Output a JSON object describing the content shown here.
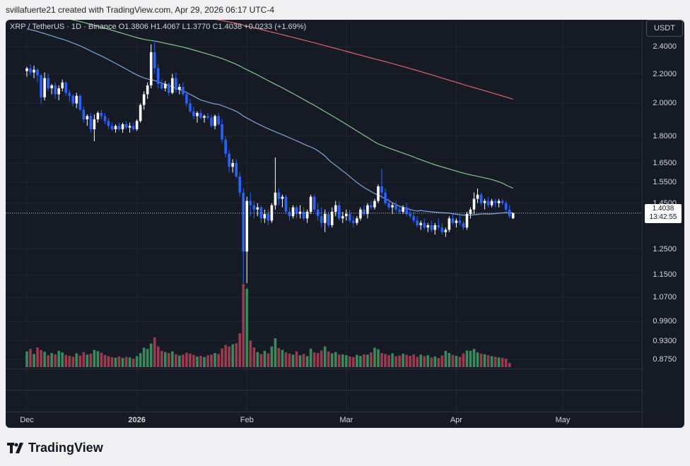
{
  "header": {
    "text": "svillafuerte21 created with TradingView.com, Apr 29, 2026 06:17 UTC-4"
  },
  "legend": {
    "symbol": "XRP / TetherUS · 1D · Binance",
    "o_label": "O",
    "open": "1.3806",
    "h_label": "H",
    "high": "1.4067",
    "l_label": "L",
    "low": "1.3770",
    "c_label": "C",
    "close": "1.4038",
    "change": "+0.0233 (+1.69%)"
  },
  "currency": "USDT",
  "last_price": {
    "value": "1.4038",
    "countdown": "13:42:55"
  },
  "logo": {
    "text": "TradingView"
  },
  "chart_data": {
    "type": "candlestick",
    "scale": "log",
    "ylim": [
      0.85,
      2.62
    ],
    "y_ticks": [
      "2.4000",
      "2.2000",
      "2.0000",
      "1.8000",
      "1.6500",
      "1.5500",
      "1.4500",
      "1.2500",
      "1.1500",
      "1.0700",
      "0.9900",
      "0.9300",
      "0.8750"
    ],
    "x_ticks": [
      {
        "label": "Dec",
        "day": 0
      },
      {
        "label": "2026",
        "day": 31,
        "bold": true
      },
      {
        "label": "Feb",
        "day": 62
      },
      {
        "label": "Mar",
        "day": 90
      },
      {
        "label": "Apr",
        "day": 121
      },
      {
        "label": "May",
        "day": 151
      }
    ],
    "colors": {
      "up": "#ffffff",
      "down": "#2962ff",
      "vol_up": "#3c8a5c",
      "vol_down": "#9c3b4f",
      "ma50": "#7aa7d8",
      "ma100": "#86c48e",
      "ma200": "#d9646f"
    },
    "candles": [
      [
        2.22,
        2.25,
        2.18,
        2.24
      ],
      [
        2.24,
        2.27,
        2.19,
        2.21
      ],
      [
        2.21,
        2.26,
        2.17,
        2.23
      ],
      [
        2.23,
        2.24,
        2.14,
        2.19
      ],
      [
        2.19,
        2.2,
        2.0,
        2.04
      ],
      [
        2.04,
        2.21,
        2.02,
        2.17
      ],
      [
        2.17,
        2.2,
        2.08,
        2.1
      ],
      [
        2.1,
        2.13,
        2.06,
        2.12
      ],
      [
        2.12,
        2.14,
        2.03,
        2.06
      ],
      [
        2.06,
        2.12,
        2.02,
        2.1
      ],
      [
        2.1,
        2.16,
        2.08,
        2.14
      ],
      [
        2.14,
        2.15,
        2.05,
        2.07
      ],
      [
        2.07,
        2.09,
        2.01,
        2.05
      ],
      [
        2.05,
        2.06,
        1.98,
        2.0
      ],
      [
        2.0,
        2.07,
        1.97,
        2.05
      ],
      [
        2.05,
        2.06,
        1.95,
        1.96
      ],
      [
        1.96,
        1.98,
        1.88,
        1.9
      ],
      [
        1.9,
        1.93,
        1.86,
        1.92
      ],
      [
        1.92,
        1.94,
        1.82,
        1.84
      ],
      [
        1.84,
        1.93,
        1.77,
        1.9
      ],
      [
        1.9,
        1.95,
        1.88,
        1.94
      ],
      [
        1.94,
        1.96,
        1.9,
        1.92
      ],
      [
        1.92,
        1.94,
        1.87,
        1.89
      ],
      [
        1.89,
        1.91,
        1.84,
        1.86
      ],
      [
        1.86,
        1.88,
        1.83,
        1.84
      ],
      [
        1.84,
        1.87,
        1.82,
        1.86
      ],
      [
        1.86,
        1.88,
        1.83,
        1.84
      ],
      [
        1.84,
        1.88,
        1.82,
        1.87
      ],
      [
        1.87,
        1.89,
        1.84,
        1.85
      ],
      [
        1.85,
        1.88,
        1.82,
        1.86
      ],
      [
        1.86,
        1.88,
        1.83,
        1.84
      ],
      [
        1.84,
        1.9,
        1.83,
        1.89
      ],
      [
        1.89,
        2.0,
        1.88,
        1.99
      ],
      [
        1.99,
        2.08,
        1.96,
        2.06
      ],
      [
        2.06,
        2.14,
        2.03,
        2.12
      ],
      [
        2.12,
        2.42,
        2.1,
        2.36
      ],
      [
        2.36,
        2.45,
        2.2,
        2.24
      ],
      [
        2.24,
        2.27,
        2.1,
        2.13
      ],
      [
        2.13,
        2.16,
        2.09,
        2.1
      ],
      [
        2.1,
        2.15,
        2.08,
        2.13
      ],
      [
        2.13,
        2.14,
        2.05,
        2.07
      ],
      [
        2.07,
        2.2,
        2.06,
        2.17
      ],
      [
        2.17,
        2.21,
        2.07,
        2.09
      ],
      [
        2.09,
        2.13,
        2.06,
        2.11
      ],
      [
        2.11,
        2.14,
        2.05,
        2.06
      ],
      [
        2.06,
        2.08,
        1.98,
        2.0
      ],
      [
        2.0,
        2.03,
        1.94,
        1.95
      ],
      [
        1.95,
        1.98,
        1.9,
        1.92
      ],
      [
        1.92,
        1.95,
        1.88,
        1.94
      ],
      [
        1.94,
        1.96,
        1.9,
        1.91
      ],
      [
        1.91,
        1.93,
        1.88,
        1.92
      ],
      [
        1.92,
        1.94,
        1.9,
        1.91
      ],
      [
        1.91,
        1.93,
        1.85,
        1.86
      ],
      [
        1.86,
        1.93,
        1.84,
        1.92
      ],
      [
        1.92,
        1.94,
        1.86,
        1.87
      ],
      [
        1.87,
        1.9,
        1.76,
        1.78
      ],
      [
        1.78,
        1.8,
        1.68,
        1.7
      ],
      [
        1.7,
        1.72,
        1.6,
        1.63
      ],
      [
        1.63,
        1.67,
        1.6,
        1.65
      ],
      [
        1.65,
        1.67,
        1.57,
        1.58
      ],
      [
        1.58,
        1.6,
        1.48,
        1.5
      ],
      [
        1.5,
        1.52,
        1.12,
        1.24
      ],
      [
        1.24,
        1.48,
        1.12,
        1.46
      ],
      [
        1.46,
        1.5,
        1.39,
        1.44
      ],
      [
        1.44,
        1.46,
        1.38,
        1.42
      ],
      [
        1.42,
        1.45,
        1.39,
        1.43
      ],
      [
        1.43,
        1.44,
        1.36,
        1.38
      ],
      [
        1.38,
        1.42,
        1.36,
        1.4
      ],
      [
        1.4,
        1.42,
        1.35,
        1.37
      ],
      [
        1.37,
        1.45,
        1.36,
        1.44
      ],
      [
        1.44,
        1.68,
        1.42,
        1.5
      ],
      [
        1.5,
        1.52,
        1.44,
        1.47
      ],
      [
        1.47,
        1.49,
        1.43,
        1.48
      ],
      [
        1.48,
        1.49,
        1.4,
        1.41
      ],
      [
        1.41,
        1.43,
        1.37,
        1.39
      ],
      [
        1.39,
        1.44,
        1.38,
        1.43
      ],
      [
        1.43,
        1.44,
        1.38,
        1.4
      ],
      [
        1.4,
        1.44,
        1.38,
        1.41
      ],
      [
        1.41,
        1.43,
        1.37,
        1.38
      ],
      [
        1.38,
        1.42,
        1.36,
        1.41
      ],
      [
        1.41,
        1.49,
        1.4,
        1.48
      ],
      [
        1.48,
        1.49,
        1.41,
        1.42
      ],
      [
        1.42,
        1.45,
        1.37,
        1.39
      ],
      [
        1.39,
        1.43,
        1.34,
        1.36
      ],
      [
        1.36,
        1.42,
        1.32,
        1.4
      ],
      [
        1.4,
        1.41,
        1.34,
        1.35
      ],
      [
        1.35,
        1.43,
        1.34,
        1.41
      ],
      [
        1.41,
        1.46,
        1.39,
        1.44
      ],
      [
        1.44,
        1.46,
        1.37,
        1.38
      ],
      [
        1.38,
        1.41,
        1.36,
        1.39
      ],
      [
        1.39,
        1.42,
        1.37,
        1.4
      ],
      [
        1.4,
        1.42,
        1.36,
        1.37
      ],
      [
        1.37,
        1.39,
        1.34,
        1.36
      ],
      [
        1.36,
        1.39,
        1.35,
        1.38
      ],
      [
        1.38,
        1.43,
        1.37,
        1.42
      ],
      [
        1.42,
        1.44,
        1.39,
        1.4
      ],
      [
        1.4,
        1.45,
        1.38,
        1.44
      ],
      [
        1.44,
        1.46,
        1.42,
        1.43
      ],
      [
        1.43,
        1.47,
        1.42,
        1.46
      ],
      [
        1.46,
        1.54,
        1.45,
        1.53
      ],
      [
        1.53,
        1.62,
        1.47,
        1.5
      ],
      [
        1.5,
        1.52,
        1.44,
        1.45
      ],
      [
        1.45,
        1.47,
        1.42,
        1.43
      ],
      [
        1.43,
        1.45,
        1.4,
        1.44
      ],
      [
        1.44,
        1.46,
        1.41,
        1.42
      ],
      [
        1.42,
        1.44,
        1.4,
        1.41
      ],
      [
        1.41,
        1.44,
        1.4,
        1.43
      ],
      [
        1.43,
        1.45,
        1.39,
        1.4
      ],
      [
        1.4,
        1.42,
        1.38,
        1.39
      ],
      [
        1.39,
        1.41,
        1.36,
        1.37
      ],
      [
        1.37,
        1.39,
        1.34,
        1.35
      ],
      [
        1.35,
        1.37,
        1.33,
        1.36
      ],
      [
        1.36,
        1.38,
        1.33,
        1.34
      ],
      [
        1.34,
        1.36,
        1.32,
        1.35
      ],
      [
        1.35,
        1.37,
        1.32,
        1.33
      ],
      [
        1.33,
        1.36,
        1.31,
        1.35
      ],
      [
        1.35,
        1.38,
        1.33,
        1.34
      ],
      [
        1.34,
        1.36,
        1.31,
        1.32
      ],
      [
        1.32,
        1.34,
        1.3,
        1.33
      ],
      [
        1.33,
        1.39,
        1.32,
        1.38
      ],
      [
        1.38,
        1.4,
        1.35,
        1.36
      ],
      [
        1.36,
        1.38,
        1.34,
        1.37
      ],
      [
        1.37,
        1.39,
        1.35,
        1.36
      ],
      [
        1.36,
        1.37,
        1.33,
        1.34
      ],
      [
        1.34,
        1.41,
        1.33,
        1.4
      ],
      [
        1.4,
        1.43,
        1.38,
        1.42
      ],
      [
        1.42,
        1.5,
        1.4,
        1.47
      ],
      [
        1.47,
        1.52,
        1.45,
        1.49
      ],
      [
        1.49,
        1.5,
        1.44,
        1.45
      ],
      [
        1.45,
        1.47,
        1.42,
        1.46
      ],
      [
        1.46,
        1.48,
        1.43,
        1.44
      ],
      [
        1.44,
        1.47,
        1.43,
        1.46
      ],
      [
        1.46,
        1.47,
        1.43,
        1.45
      ],
      [
        1.45,
        1.47,
        1.43,
        1.46
      ],
      [
        1.46,
        1.47,
        1.44,
        1.45
      ],
      [
        1.45,
        1.46,
        1.41,
        1.42
      ],
      [
        1.42,
        1.44,
        1.38,
        1.39
      ],
      [
        1.3806,
        1.4067,
        1.377,
        1.4038
      ]
    ],
    "volume": [
      0.5,
      0.58,
      0.42,
      0.63,
      0.55,
      0.49,
      0.38,
      0.45,
      0.41,
      0.52,
      0.47,
      0.39,
      0.36,
      0.33,
      0.44,
      0.37,
      0.48,
      0.4,
      0.43,
      0.55,
      0.51,
      0.46,
      0.39,
      0.35,
      0.32,
      0.3,
      0.34,
      0.29,
      0.33,
      0.31,
      0.27,
      0.35,
      0.45,
      0.62,
      0.58,
      0.75,
      0.95,
      0.66,
      0.52,
      0.48,
      0.45,
      0.5,
      0.41,
      0.37,
      0.4,
      0.46,
      0.43,
      0.39,
      0.34,
      0.36,
      0.32,
      0.38,
      0.4,
      0.45,
      0.42,
      0.6,
      0.71,
      0.66,
      0.73,
      0.76,
      1.08,
      2.65,
      2.5,
      0.85,
      0.63,
      0.48,
      0.42,
      0.52,
      0.44,
      0.66,
      0.92,
      0.61,
      0.55,
      0.47,
      0.43,
      0.4,
      0.5,
      0.38,
      0.42,
      0.35,
      0.59,
      0.47,
      0.45,
      0.53,
      0.66,
      0.5,
      0.44,
      0.48,
      0.4,
      0.41,
      0.38,
      0.34,
      0.32,
      0.39,
      0.36,
      0.41,
      0.4,
      0.47,
      0.62,
      0.57,
      0.45,
      0.42,
      0.38,
      0.44,
      0.35,
      0.37,
      0.43,
      0.39,
      0.36,
      0.41,
      0.33,
      0.4,
      0.35,
      0.38,
      0.31,
      0.34,
      0.29,
      0.37,
      0.52,
      0.45,
      0.39,
      0.36,
      0.33,
      0.44,
      0.53,
      0.52,
      0.58,
      0.47,
      0.43,
      0.41,
      0.38,
      0.35,
      0.33,
      0.31,
      0.3,
      0.27,
      0.14
    ]
  }
}
